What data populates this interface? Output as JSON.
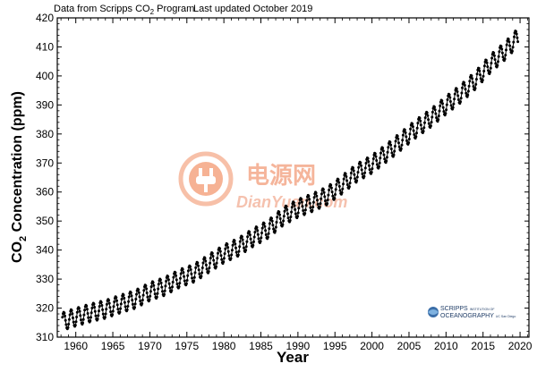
{
  "header": {
    "source_prefix": "Data from Scripps CO",
    "source_sub": "2",
    "source_suffix": " Program",
    "updated": "Last updated October 2019"
  },
  "watermark": {
    "chinese": "电源网",
    "site": "DianYuan.com",
    "color": "#f29a73"
  },
  "logo": {
    "line1": "SCRIPPS",
    "line1_small": "INSTITUTION OF",
    "line2": "OCEANOGRAPHY",
    "line2_small": "UC San Diego",
    "color": "#1f3c66"
  },
  "chart_data": {
    "type": "line",
    "xlabel": "Year",
    "ylabel_main": "CO",
    "ylabel_sub": "2",
    "ylabel_rest": " Concentration (ppm)",
    "xlim": [
      1957.5,
      2021.2
    ],
    "ylim": [
      310,
      420
    ],
    "xticks": [
      1960,
      1965,
      1970,
      1975,
      1980,
      1985,
      1990,
      1995,
      2000,
      2005,
      2010,
      2015,
      2020
    ],
    "yticks": [
      310,
      320,
      330,
      340,
      350,
      360,
      370,
      380,
      390,
      400,
      410,
      420
    ],
    "grid": false,
    "series": [
      {
        "annual_means": {
          "x": [
            1958,
            1960,
            1962,
            1964,
            1966,
            1968,
            1970,
            1972,
            1974,
            1976,
            1978,
            1980,
            1982,
            1984,
            1986,
            1988,
            1990,
            1992,
            1994,
            1996,
            1998,
            2000,
            2002,
            2004,
            2006,
            2008,
            2010,
            2012,
            2014,
            2016,
            2018,
            2019
          ],
          "y": [
            315.2,
            316.9,
            318.4,
            319.6,
            321.4,
            323.0,
            325.7,
            327.5,
            330.2,
            332.1,
            335.4,
            338.7,
            341.1,
            344.4,
            347.2,
            351.6,
            354.4,
            356.4,
            358.8,
            362.6,
            366.7,
            369.6,
            373.5,
            377.7,
            381.9,
            385.6,
            389.9,
            393.9,
            398.6,
            404.2,
            408.7,
            411.4
          ]
        },
        "seasonal_amplitude_ppm": 6.2,
        "color": "#000000"
      }
    ]
  }
}
